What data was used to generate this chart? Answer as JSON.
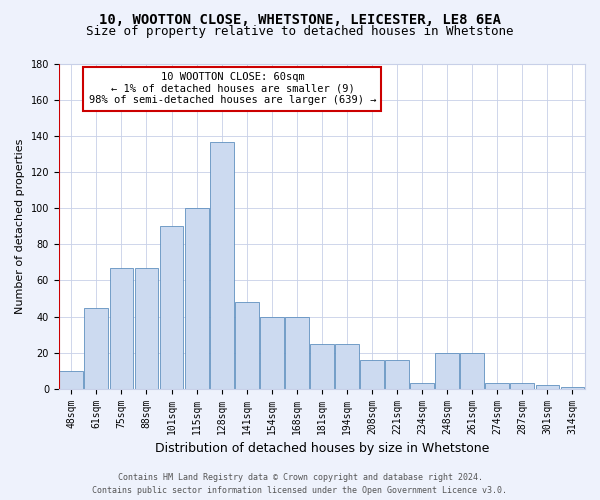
{
  "title_line1": "10, WOOTTON CLOSE, WHETSTONE, LEICESTER, LE8 6EA",
  "title_line2": "Size of property relative to detached houses in Whetstone",
  "xlabel": "Distribution of detached houses by size in Whetstone",
  "ylabel": "Number of detached properties",
  "categories": [
    "48sqm",
    "61sqm",
    "75sqm",
    "88sqm",
    "101sqm",
    "115sqm",
    "128sqm",
    "141sqm",
    "154sqm",
    "168sqm",
    "181sqm",
    "194sqm",
    "208sqm",
    "221sqm",
    "234sqm",
    "248sqm",
    "261sqm",
    "274sqm",
    "287sqm",
    "301sqm",
    "314sqm"
  ],
  "values": [
    10,
    45,
    67,
    67,
    90,
    100,
    137,
    48,
    40,
    40,
    25,
    25,
    16,
    16,
    3,
    20,
    20,
    3,
    3,
    2,
    1
  ],
  "bar_color": "#ccdaf0",
  "bar_edge_color": "#6090c0",
  "highlight_line_color": "#cc0000",
  "annotation_text": "10 WOOTTON CLOSE: 60sqm\n← 1% of detached houses are smaller (9)\n98% of semi-detached houses are larger (639) →",
  "annotation_box_color": "#ffffff",
  "annotation_box_edge_color": "#cc0000",
  "ylim": [
    0,
    180
  ],
  "yticks": [
    0,
    20,
    40,
    60,
    80,
    100,
    120,
    140,
    160,
    180
  ],
  "footer_line1": "Contains HM Land Registry data © Crown copyright and database right 2024.",
  "footer_line2": "Contains public sector information licensed under the Open Government Licence v3.0.",
  "bg_color": "#eef2fc",
  "plot_bg_color": "#ffffff",
  "grid_color": "#c8d0e8",
  "title1_fontsize": 10,
  "title2_fontsize": 9,
  "xlabel_fontsize": 9,
  "ylabel_fontsize": 8,
  "tick_fontsize": 7,
  "footer_fontsize": 6,
  "annotation_fontsize": 7.5
}
